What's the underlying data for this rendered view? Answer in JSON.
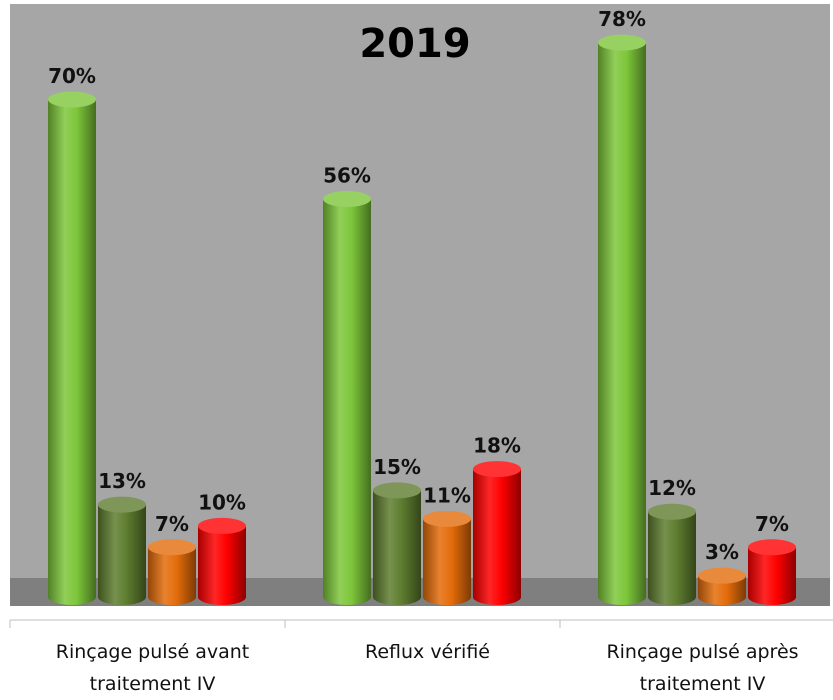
{
  "chart_data": {
    "type": "bar3d",
    "title": "2019",
    "categories": [
      "Rinçage pulsé avant traitement IV",
      "Reflux vérifié",
      "Rinçage pulsé après traitement IV"
    ],
    "series": [
      {
        "color": "#7dc63a",
        "values": [
          70,
          56,
          78
        ],
        "value_labels": [
          "70%",
          "56%",
          "78%"
        ]
      },
      {
        "color": "#5e7d2f",
        "values": [
          13,
          15,
          12
        ],
        "value_labels": [
          "13%",
          "15%",
          "12%"
        ]
      },
      {
        "color": "#e46c0a",
        "values": [
          7,
          11,
          3
        ],
        "value_labels": [
          "7%",
          "11%",
          "3%"
        ]
      },
      {
        "color": "#ff0000",
        "values": [
          10,
          18,
          7
        ],
        "value_labels": [
          "10%",
          "18%",
          "7%"
        ]
      }
    ],
    "ylim": [
      0,
      84
    ]
  }
}
